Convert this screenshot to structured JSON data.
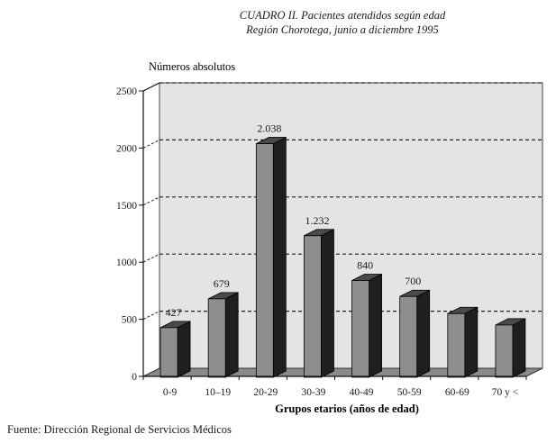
{
  "header": {
    "title": "CUADRO II. Pacientes atendidos según edad",
    "subtitle": "Región Chorotega, junio a diciembre 1995"
  },
  "source": "Fuente: Dirección Regional de Servicios Médicos",
  "colors": {
    "bar_front": "#8e8e8e",
    "bar_side": "#1f1f1f",
    "bar_top": "#4a4a4a",
    "wall": "#e4e4e4",
    "floor": "#8a8a8a",
    "grid": "#222222"
  },
  "chart_data": {
    "type": "bar",
    "title": "",
    "ylabel": "Números absolutos",
    "xlabel": "Grupos etarios (años de edad)",
    "categories": [
      "0-9",
      "10–19",
      "20-29",
      "30-39",
      "40-49",
      "50-59",
      "60-69",
      "70 y <"
    ],
    "values": [
      427,
      679,
      2038,
      1232,
      840,
      700,
      550,
      450
    ],
    "data_labels": [
      "427",
      "679",
      "2.038",
      "1.232",
      "840",
      "700",
      "",
      ""
    ],
    "ylim": [
      0,
      2500
    ],
    "yticks": [
      0,
      500,
      1000,
      1500,
      2000,
      2500
    ],
    "grid": true,
    "legend": "none"
  }
}
